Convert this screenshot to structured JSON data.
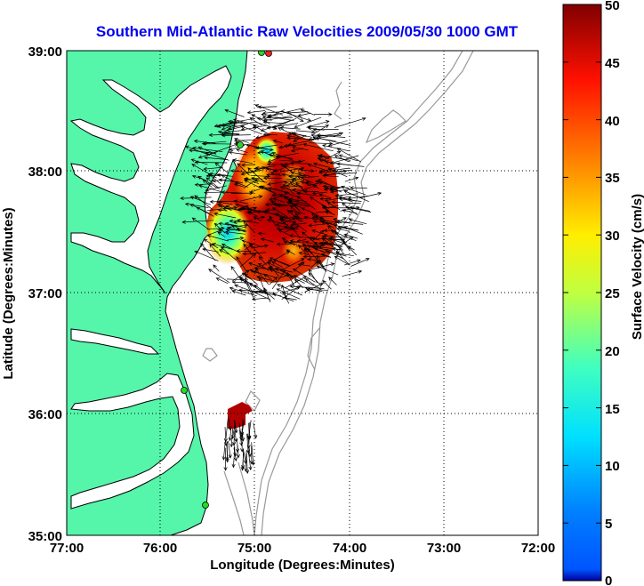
{
  "title": "Southern Mid-Atlantic Raw Velocities 2009/05/30 1000 GMT",
  "xlabel": "Longitude (Degrees:Minutes)",
  "ylabel": "Latitude (Degrees:Minutes)",
  "colorbar_label": "Surface Velocity (cm/s)",
  "x_ticks": [
    "77:00",
    "76:00",
    "75:00",
    "74:00",
    "73:00",
    "72:00"
  ],
  "y_ticks": [
    "39:00",
    "38:00",
    "37:00",
    "36:00",
    "35:00"
  ],
  "colorbar_ticks": [
    "0",
    "5",
    "10",
    "15",
    "20",
    "25",
    "30",
    "35",
    "40",
    "45",
    "50"
  ],
  "colors": {
    "land": "#55f5aa",
    "water": "#ffffff",
    "coastline": "#000000",
    "bathymetry": "#999999",
    "title": "#0000ee",
    "station": "#22dd22",
    "station_alt": "#ee2222"
  },
  "chart_data": {
    "type": "heatmap",
    "xlim_deg_west": [
      77,
      72
    ],
    "ylim_deg_north": [
      35,
      39
    ],
    "grid": true,
    "colorbar": {
      "min": 0,
      "max": 50,
      "units": "cm/s",
      "colormap": "jet",
      "placement": "right"
    },
    "stations": [
      {
        "lon": -75.08,
        "lat": 38.95
      },
      {
        "lon": -74.82,
        "lat": 38.94
      },
      {
        "lon": -75.1,
        "lat": 38.23
      },
      {
        "lon": -75.7,
        "lat": 36.18
      },
      {
        "lon": -75.47,
        "lat": 35.25
      }
    ]
  }
}
